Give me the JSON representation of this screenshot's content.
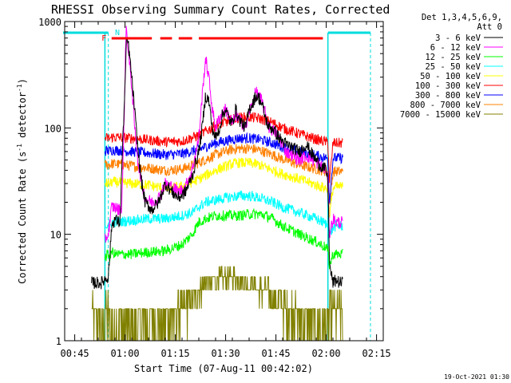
{
  "chart_data": {
    "type": "line",
    "title": "RHESSI Observing Summary Count Rates, Corrected",
    "xlabel": "Start Time (07-Aug-11 00:42:02)",
    "ylabel_main": "Corrected Count Rate (s",
    "ylabel_sup1": "-1",
    "ylabel_mid": " detector",
    "ylabel_sup2": "-1",
    "ylabel_end": ")",
    "y_scale": "log",
    "ylim": [
      1,
      1000
    ],
    "xlim_minutes_after_0042": [
      0,
      95
    ],
    "x_ticks": [
      "00:45",
      "01:00",
      "01:15",
      "01:30",
      "01:45",
      "02:00",
      "02:15"
    ],
    "x_tick_minutes": [
      3,
      18,
      33,
      48,
      63,
      78,
      93
    ],
    "y_ticks": [
      "1",
      "10",
      "100",
      "1000"
    ],
    "y_tick_values": [
      1,
      10,
      100,
      1000
    ],
    "legend_header_line1": "Det 1,3,4,5,6,9,",
    "legend_header_line2": "Att 0",
    "timestamp": "19-Oct-2021 01:30",
    "flag_labels": [
      {
        "text": "F",
        "color": "#ff0000",
        "minute": 11
      },
      {
        "text": "N",
        "color": "#00dcdc",
        "minute": 15
      }
    ],
    "flare_bar_segments_minutes": [
      [
        14,
        26
      ],
      [
        28.5,
        32
      ],
      [
        34,
        38
      ],
      [
        40,
        77
      ]
    ],
    "night_segments_minutes": [
      [
        0,
        13.5
      ],
      [
        78.5,
        95
      ]
    ],
    "series": [
      {
        "name": "3 - 6 keV",
        "color": "#000000",
        "x": [
          8,
          11,
          12,
          13,
          13.7,
          14,
          15,
          16,
          16.5,
          17,
          18,
          18.5,
          19,
          20,
          21,
          22,
          23,
          24,
          26,
          28,
          30,
          32,
          34,
          36,
          38,
          40,
          41,
          42,
          43,
          44,
          45,
          46,
          47,
          48,
          49,
          50,
          51,
          52,
          53,
          54,
          55,
          56,
          57,
          58,
          59,
          60,
          61,
          62,
          63,
          64,
          66,
          68,
          70,
          72,
          74,
          76,
          78,
          78.5,
          79,
          80,
          81,
          82,
          83
        ],
        "y": [
          3.5,
          3.5,
          3.8,
          4,
          8,
          12,
          14,
          13,
          13,
          40,
          250,
          700,
          600,
          300,
          130,
          55,
          30,
          20,
          17,
          20,
          30,
          25,
          22,
          25,
          35,
          60,
          100,
          200,
          180,
          100,
          80,
          95,
          130,
          150,
          120,
          110,
          150,
          120,
          110,
          100,
          150,
          170,
          200,
          190,
          160,
          120,
          100,
          100,
          90,
          80,
          70,
          65,
          60,
          70,
          55,
          45,
          40,
          30,
          5,
          3.5,
          3.7,
          3.5,
          3.5
        ]
      },
      {
        "name": "6 - 12 keV",
        "color": "#ff00ff",
        "x": [
          12,
          13,
          13.7,
          14,
          15,
          16,
          17,
          17.5,
          18,
          18.3,
          18.7,
          19,
          20,
          21,
          22,
          23,
          24,
          26,
          28,
          30,
          32,
          34,
          36,
          38,
          40,
          41,
          42,
          43,
          44,
          45,
          46,
          47,
          48,
          49,
          50,
          51,
          52,
          53,
          54,
          55,
          56,
          57,
          58,
          59,
          60,
          61,
          62,
          63,
          64,
          66,
          68,
          70,
          72,
          74,
          76,
          78,
          78.5,
          79,
          80,
          81,
          82,
          83
        ],
        "y": [
          9,
          10,
          15,
          18,
          18,
          17,
          18,
          60,
          300,
          900,
          700,
          500,
          250,
          90,
          45,
          30,
          22,
          20,
          22,
          30,
          28,
          25,
          28,
          40,
          80,
          200,
          450,
          300,
          150,
          100,
          120,
          140,
          150,
          130,
          110,
          130,
          120,
          110,
          100,
          140,
          170,
          220,
          200,
          170,
          130,
          100,
          95,
          90,
          80,
          60,
          55,
          50,
          55,
          50,
          45,
          40,
          30,
          10,
          14,
          13,
          13,
          13
        ]
      },
      {
        "name": "12 - 25 keV",
        "color": "#00ff00",
        "x": [
          12,
          13,
          13.7,
          14,
          15,
          20,
          25,
          30,
          35,
          38,
          40,
          42,
          45,
          48,
          52,
          55,
          58,
          60,
          62,
          65,
          70,
          75,
          78,
          78.5,
          79,
          80,
          81,
          82,
          83
        ],
        "y": [
          6,
          6.5,
          6,
          7,
          6.5,
          6.5,
          6.8,
          7,
          8,
          10,
          13,
          14,
          15,
          15,
          15,
          15.5,
          15.5,
          15,
          14,
          12,
          10,
          8.5,
          7.5,
          7,
          5,
          6.5,
          6.5,
          6.5,
          6.5
        ]
      },
      {
        "name": "25 - 50 keV",
        "color": "#00ffff",
        "x": [
          12,
          13,
          13.7,
          14,
          15,
          20,
          25,
          30,
          35,
          38,
          40,
          42,
          45,
          48,
          52,
          55,
          58,
          60,
          62,
          65,
          70,
          75,
          78,
          78.5,
          79,
          80,
          81,
          82,
          83
        ],
        "y": [
          12,
          12.5,
          12,
          13,
          13,
          13.5,
          14,
          14,
          15,
          16,
          18,
          20,
          21,
          22,
          23,
          23,
          22,
          21,
          20,
          18,
          16,
          14,
          12.5,
          12,
          10,
          11.5,
          12,
          12,
          12
        ]
      },
      {
        "name": "50 - 100 keV",
        "color": "#ffff00",
        "x": [
          12,
          13,
          13.7,
          14,
          15,
          20,
          25,
          30,
          35,
          40,
          45,
          50,
          52,
          55,
          58,
          62,
          65,
          70,
          75,
          78,
          78.5,
          79,
          80,
          81,
          82,
          83
        ],
        "y": [
          30,
          30,
          30,
          31,
          31,
          30,
          29,
          27,
          28,
          33,
          40,
          46,
          47,
          47,
          45,
          40,
          37,
          33,
          29,
          27,
          27,
          15,
          27,
          28,
          28,
          28
        ]
      },
      {
        "name": "100 - 300 keV",
        "color": "#ff0000",
        "x": [
          12,
          13,
          13.7,
          14,
          15,
          20,
          25,
          30,
          35,
          40,
          45,
          50,
          52,
          55,
          58,
          62,
          65,
          70,
          75,
          78,
          78.5,
          79,
          80,
          81,
          82,
          83
        ],
        "y": [
          80,
          80,
          80,
          82,
          82,
          80,
          77,
          74,
          75,
          85,
          105,
          120,
          125,
          126,
          123,
          112,
          100,
          88,
          78,
          74,
          74,
          30,
          72,
          72,
          72,
          72
        ]
      },
      {
        "name": "300 - 800 keV",
        "color": "#0000ff",
        "x": [
          12,
          13,
          13.7,
          14,
          15,
          20,
          25,
          30,
          35,
          40,
          45,
          50,
          52,
          55,
          58,
          62,
          65,
          70,
          75,
          78,
          78.5,
          79,
          80,
          81,
          82,
          83
        ],
        "y": [
          61,
          61,
          61,
          62,
          62,
          60,
          58,
          56,
          57,
          63,
          72,
          78,
          80,
          80,
          78,
          72,
          66,
          60,
          55,
          52,
          52,
          20,
          52,
          52,
          52,
          52
        ]
      },
      {
        "name": "800 - 7000 keV",
        "color": "#ff8000",
        "x": [
          12,
          13,
          13.7,
          14,
          15,
          20,
          25,
          30,
          35,
          40,
          45,
          50,
          52,
          55,
          58,
          62,
          65,
          70,
          75,
          78,
          78.5,
          79,
          80,
          81,
          82,
          83
        ],
        "y": [
          45,
          45,
          45,
          46,
          46,
          44,
          42,
          40,
          41,
          47,
          56,
          63,
          64,
          64,
          62,
          56,
          51,
          45,
          41,
          39,
          39,
          18,
          39,
          39,
          39,
          39
        ]
      },
      {
        "name": "7000 - 15000 keV",
        "color": "#808000",
        "x": [
          8,
          11,
          13,
          13.7,
          14,
          15,
          20,
          25,
          28,
          30,
          35,
          38,
          40,
          42,
          44,
          46,
          48,
          50,
          52,
          54,
          56,
          58,
          60,
          62,
          64,
          66,
          68,
          70,
          72,
          74,
          76,
          78,
          78.5,
          79,
          80,
          81,
          82,
          83
        ],
        "y": [
          2,
          1.5,
          2,
          1,
          1.5,
          1.5,
          1.3,
          1.5,
          1.7,
          1.5,
          2,
          2.5,
          3,
          3.5,
          3.5,
          4,
          4,
          4,
          4,
          3.5,
          3.5,
          3,
          3,
          2.5,
          2.5,
          2,
          2,
          1.7,
          1.5,
          1.5,
          1.5,
          1.5,
          1,
          2,
          2,
          1.8,
          2,
          2
        ]
      }
    ]
  }
}
